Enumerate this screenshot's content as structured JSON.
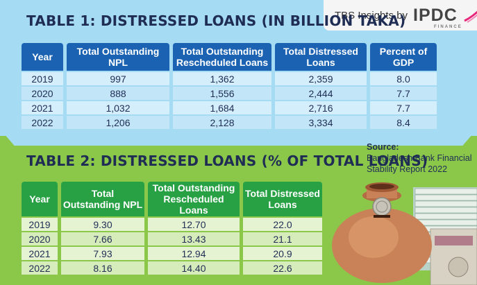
{
  "brand": {
    "text": "TBS Insights by",
    "logo": "IPDC",
    "logo_sub": "FINANCE",
    "accent": "#e8277b"
  },
  "table1": {
    "title": "TABLE 1: DISTRESSED LOANS (IN BILLION TAKA)",
    "headers": [
      "Year",
      "Total Outstanding NPL",
      "Total Outstanding Rescheduled Loans",
      "Total Distressed Loans",
      "Percent of GDP"
    ],
    "rows": [
      [
        "2019",
        "997",
        "1,362",
        "2,359",
        "8.0"
      ],
      [
        "2020",
        "888",
        "1,556",
        "2,444",
        "7.7"
      ],
      [
        "2021",
        "1,032",
        "1,684",
        "2,716",
        "7.7"
      ],
      [
        "2022",
        "1,206",
        "2,128",
        "3,334",
        "8.4"
      ]
    ]
  },
  "table2": {
    "title": "TABLE 2: DISTRESSED LOANS (% OF TOTAL LOANS)",
    "headers": [
      "Year",
      "Total Outstanding NPL",
      "Total Outstanding Rescheduled Loans",
      "Total Distressed Loans"
    ],
    "rows": [
      [
        "2019",
        "9.30",
        "12.70",
        "22.0"
      ],
      [
        "2020",
        "7.66",
        "13.43",
        "21.1"
      ],
      [
        "2021",
        "7.93",
        "12.94",
        "20.9"
      ],
      [
        "2022",
        "8.16",
        "14.40",
        "22.6"
      ]
    ]
  },
  "source": {
    "label": "Source:",
    "text": "Bangladesh Bank Financial Stability Report 2022"
  },
  "illustration": {
    "subject": "clay-pot-with-coin-and-banknote-stacks"
  },
  "colors": {
    "top_bg": "#a6dcf3",
    "bottom_bg": "#8bc84a",
    "t1_header": "#1b63b2",
    "t2_header": "#27a144",
    "title": "#1f2d55"
  }
}
